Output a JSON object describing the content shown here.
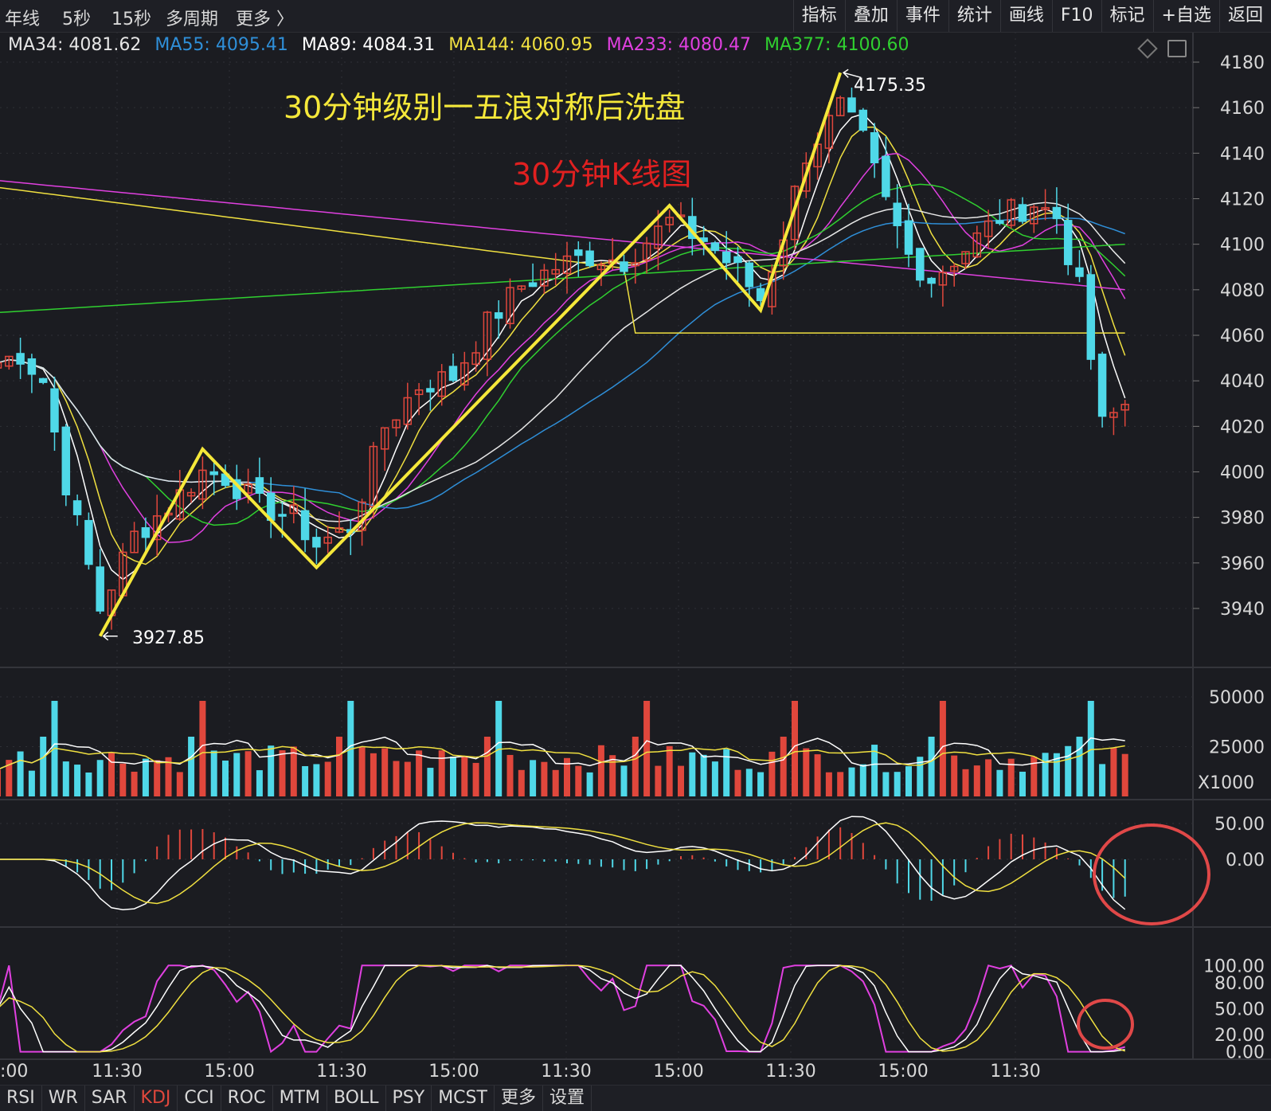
{
  "topbar": {
    "periods": [
      "年线",
      "5秒",
      "15秒",
      "多周期",
      "更多 〉"
    ],
    "tools": [
      "指标",
      "叠加",
      "事件",
      "统计",
      "画线",
      "F10",
      "标记",
      "+自选",
      "返回"
    ]
  },
  "ma_legend": [
    {
      "label": "MA34: 4081.62",
      "color": "#e6e6e6"
    },
    {
      "label": "MA55: 4095.41",
      "color": "#2f8fd8"
    },
    {
      "label": "MA89: 4084.31",
      "color": "#ffffff"
    },
    {
      "label": "MA144: 4060.95",
      "color": "#f0e040"
    },
    {
      "label": "MA233: 4080.47",
      "color": "#e040e0"
    },
    {
      "label": "MA377: 4100.60",
      "color": "#30d030"
    }
  ],
  "annotations": {
    "title": "30分钟级别一五浪对称后洗盘",
    "subtitle": "30分钟K线图",
    "low_label": "3927.85",
    "high_label": "4175.35",
    "volume_unit": "X1000"
  },
  "bottombar": {
    "indicators": [
      "RSI",
      "WR",
      "SAR",
      "KDJ",
      "CCI",
      "ROC",
      "MTM",
      "BOLL",
      "PSY",
      "MCST",
      "更多",
      "设置"
    ],
    "active": "KDJ"
  },
  "chart_data": {
    "type": "candlestick",
    "price_axis": {
      "ylim": [
        3920,
        4185
      ],
      "ticks": [
        4180,
        4160,
        4140,
        4120,
        4100,
        4080,
        4060,
        4040,
        4020,
        4000,
        3980,
        3960,
        3940
      ]
    },
    "volume_axis": {
      "ylim": [
        0,
        60000
      ],
      "ticks": [
        "50000",
        "25000"
      ]
    },
    "macd_axis": {
      "ylim": [
        -90,
        70
      ],
      "ticks": [
        "50.00",
        "0.00"
      ]
    },
    "kdj_axis": {
      "ylim": [
        -5,
        115
      ],
      "ticks": [
        "100.00",
        "80.00",
        "50.00",
        "20.00",
        "0.00"
      ]
    },
    "time_labels": [
      ":00",
      "11:30",
      "15:00",
      "11:30",
      "15:00",
      "11:30",
      "15:00",
      "11:30",
      "15:00",
      "11:30"
    ],
    "wave_points": [
      {
        "i": 9,
        "v": 3927.85
      },
      {
        "i": 18,
        "v": 4010
      },
      {
        "i": 28,
        "v": 3958
      },
      {
        "i": 59,
        "v": 4117
      },
      {
        "i": 67,
        "v": 4071
      },
      {
        "i": 74,
        "v": 4175.35
      }
    ],
    "series_colors": {
      "ma1": "#ffffff",
      "ma2": "#f0e040",
      "ma3": "#e040e0",
      "ma4": "#30d030",
      "ma5": "#2f8fd8",
      "ma6": "#e6e6e6",
      "ma7": "#e040e0",
      "ma8": "#f0e040",
      "ma9": "#30d030",
      "up": "#e0473c",
      "down": "#4fd8e8"
    }
  }
}
